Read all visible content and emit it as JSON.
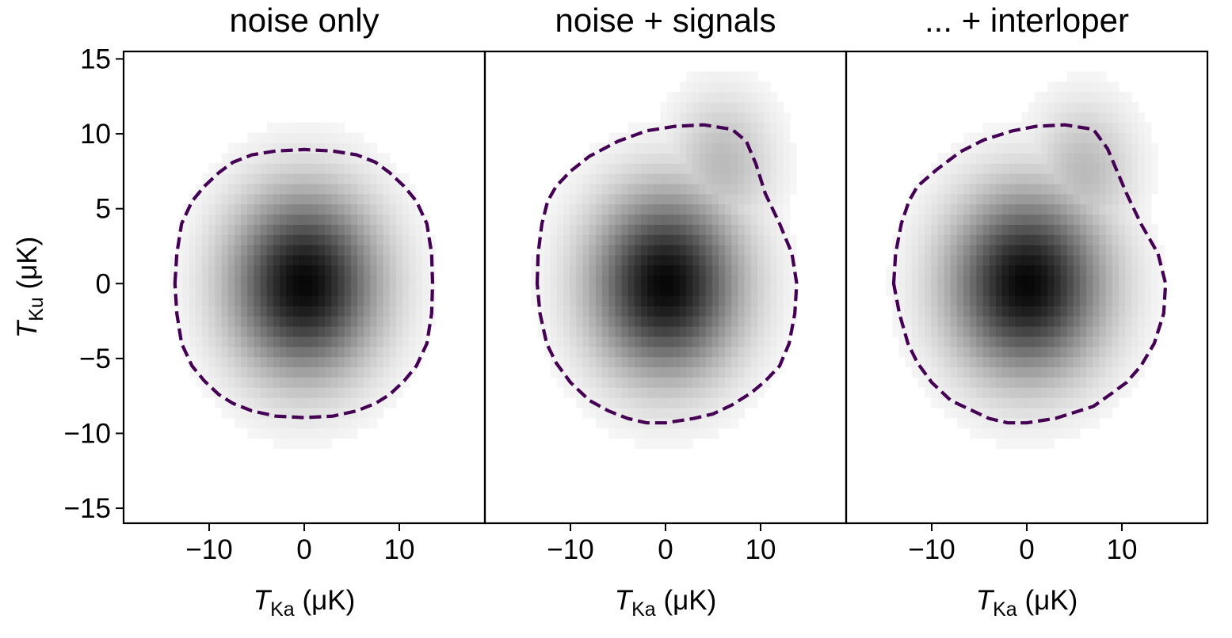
{
  "chart_data": [
    {
      "type": "heatmap",
      "title": "noise only",
      "xlabel": {
        "symbol": "T",
        "sub": "Ka",
        "unit": "(μK)"
      },
      "ylabel": {
        "symbol": "T",
        "sub": "Ku",
        "unit": "(μK)"
      },
      "xlim": [
        -19,
        19
      ],
      "ylim": [
        -16,
        15.5
      ],
      "xticks": [
        -10,
        0,
        10
      ],
      "xtick_labels": [
        "−10",
        "0",
        "10"
      ],
      "yticks": [
        15,
        10,
        5,
        0,
        -5,
        -10,
        -15
      ],
      "ytick_labels": [
        "15",
        "10",
        "5",
        "0",
        "−5",
        "−10",
        "−15"
      ],
      "density": {
        "center": [
          0,
          0
        ],
        "sigma": [
          5.0,
          3.9
        ],
        "colormap": "Greys",
        "extent": [
          -15.5,
          15.5,
          -11,
          11
        ]
      },
      "contour": {
        "style": "dashed",
        "color": "#440154",
        "points": [
          [
            -13.6,
            0
          ],
          [
            -13.4,
            2
          ],
          [
            -12.9,
            4
          ],
          [
            -11.8,
            5.5
          ],
          [
            -10.5,
            6.5
          ],
          [
            -9,
            7.4
          ],
          [
            -7.5,
            8.1
          ],
          [
            -5.5,
            8.6
          ],
          [
            -3,
            8.85
          ],
          [
            0,
            8.95
          ],
          [
            3,
            8.85
          ],
          [
            5.5,
            8.6
          ],
          [
            7.5,
            8.1
          ],
          [
            9,
            7.4
          ],
          [
            10.5,
            6.5
          ],
          [
            11.8,
            5.5
          ],
          [
            12.9,
            4
          ],
          [
            13.4,
            2
          ],
          [
            13.5,
            0
          ],
          [
            13.4,
            -2
          ],
          [
            12.9,
            -4
          ],
          [
            11.8,
            -5.5
          ],
          [
            10.5,
            -6.5
          ],
          [
            9,
            -7.4
          ],
          [
            7.5,
            -8
          ],
          [
            5.5,
            -8.5
          ],
          [
            3,
            -8.85
          ],
          [
            0,
            -8.95
          ],
          [
            -3,
            -8.85
          ],
          [
            -5.5,
            -8.5
          ],
          [
            -7.5,
            -8
          ],
          [
            -9,
            -7.4
          ],
          [
            -10.5,
            -6.5
          ],
          [
            -11.8,
            -5.5
          ],
          [
            -12.9,
            -4
          ],
          [
            -13.4,
            -2
          ]
        ]
      }
    },
    {
      "type": "heatmap",
      "title": "noise + signals",
      "xlabel": {
        "symbol": "T",
        "sub": "Ka",
        "unit": "(μK)"
      },
      "xlim": [
        -19,
        19
      ],
      "ylim": [
        -16,
        15.5
      ],
      "xticks": [
        -10,
        0,
        10
      ],
      "xtick_labels": [
        "−10",
        "0",
        "10"
      ],
      "density": {
        "center": [
          0,
          0
        ],
        "sigma": [
          5.0,
          3.9
        ],
        "tail": {
          "center": [
            6,
            8
          ],
          "sigma": [
            3.5,
            3
          ]
        },
        "colormap": "Greys",
        "extent": [
          -15.5,
          17,
          -11,
          14
        ]
      },
      "contour": {
        "style": "dashed",
        "color": "#440154",
        "points": [
          [
            -13.5,
            0
          ],
          [
            -13.4,
            2
          ],
          [
            -13,
            4
          ],
          [
            -12.4,
            5.5
          ],
          [
            -11.5,
            6.5
          ],
          [
            -10,
            7.5
          ],
          [
            -8,
            8.5
          ],
          [
            -5,
            9.5
          ],
          [
            -2,
            10.2
          ],
          [
            1,
            10.5
          ],
          [
            4,
            10.6
          ],
          [
            7,
            10.3
          ],
          [
            8.5,
            9.5
          ],
          [
            9.5,
            8
          ],
          [
            10.5,
            6
          ],
          [
            12,
            4
          ],
          [
            13.3,
            2
          ],
          [
            13.8,
            0
          ],
          [
            13.6,
            -2
          ],
          [
            13,
            -4
          ],
          [
            12,
            -5.5
          ],
          [
            10.5,
            -6.5
          ],
          [
            9,
            -7.3
          ],
          [
            7,
            -8.1
          ],
          [
            5,
            -8.7
          ],
          [
            3,
            -9
          ],
          [
            0,
            -9.3
          ],
          [
            -2,
            -9.3
          ],
          [
            -4,
            -9
          ],
          [
            -6,
            -8.5
          ],
          [
            -8,
            -7.8
          ],
          [
            -10,
            -6.6
          ],
          [
            -11.5,
            -5.3
          ],
          [
            -12.5,
            -4
          ],
          [
            -13.2,
            -2
          ]
        ]
      }
    },
    {
      "type": "heatmap",
      "title": "... + interloper",
      "xlabel": {
        "symbol": "T",
        "sub": "Ka",
        "unit": "(μK)"
      },
      "xlim": [
        -19,
        19
      ],
      "ylim": [
        -16,
        15.5
      ],
      "xticks": [
        -10,
        0,
        10
      ],
      "xtick_labels": [
        "−10",
        "0",
        "10"
      ],
      "density": {
        "center": [
          0,
          0
        ],
        "sigma": [
          5.2,
          3.9
        ],
        "tail": {
          "center": [
            6,
            7.5
          ],
          "sigma": [
            3.5,
            3
          ]
        },
        "colormap": "Greys",
        "extent": [
          -15.5,
          17,
          -11,
          14
        ]
      },
      "contour": {
        "style": "dashed",
        "color": "#440154",
        "points": [
          [
            -14,
            0
          ],
          [
            -13.8,
            2
          ],
          [
            -13.2,
            4
          ],
          [
            -12.4,
            5.5
          ],
          [
            -11.5,
            6.5
          ],
          [
            -9.5,
            7.6
          ],
          [
            -7,
            8.8
          ],
          [
            -4.5,
            9.6
          ],
          [
            -1.5,
            10.2
          ],
          [
            1,
            10.5
          ],
          [
            4,
            10.6
          ],
          [
            7,
            10.3
          ],
          [
            8.5,
            9
          ],
          [
            9.5,
            7.5
          ],
          [
            10.5,
            6
          ],
          [
            12,
            4
          ],
          [
            13.8,
            2
          ],
          [
            14.6,
            0
          ],
          [
            14.4,
            -2
          ],
          [
            13.4,
            -4
          ],
          [
            12,
            -5.5
          ],
          [
            10.5,
            -6.6
          ],
          [
            9,
            -7.3
          ],
          [
            7,
            -8.2
          ],
          [
            5,
            -8.6
          ],
          [
            3,
            -9
          ],
          [
            0,
            -9.3
          ],
          [
            -2,
            -9.3
          ],
          [
            -4,
            -9
          ],
          [
            -6,
            -8.4
          ],
          [
            -8,
            -7.8
          ],
          [
            -10,
            -6.6
          ],
          [
            -11.5,
            -5.3
          ],
          [
            -12.5,
            -4
          ],
          [
            -13.4,
            -2
          ]
        ]
      }
    }
  ]
}
